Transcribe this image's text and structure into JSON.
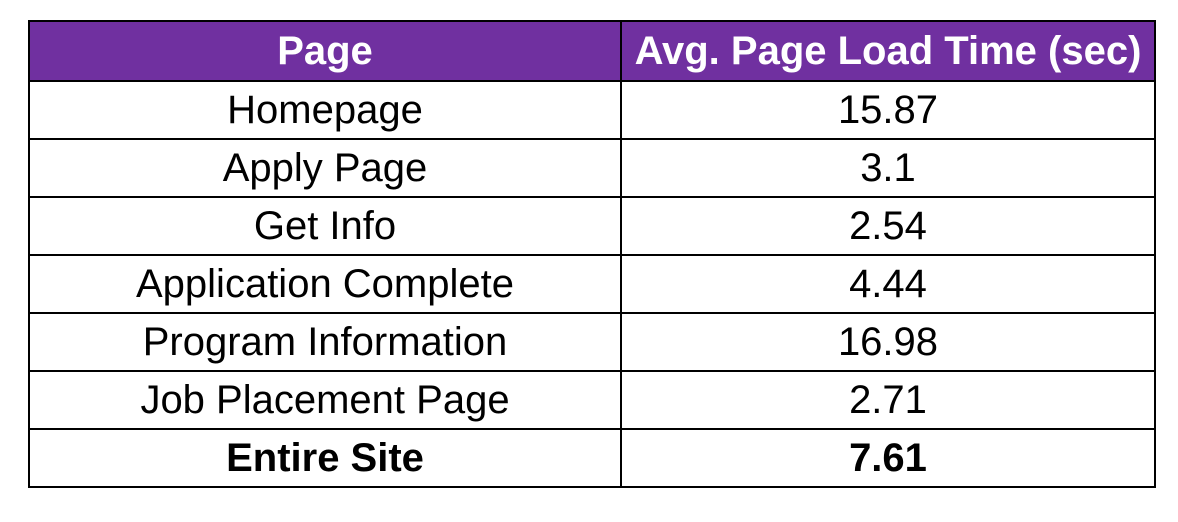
{
  "table": {
    "columns": [
      "Page",
      "Avg. Page Load Time (sec)"
    ],
    "rows": [
      {
        "page": "Homepage",
        "time": "15.87"
      },
      {
        "page": "Apply Page",
        "time": "3.1"
      },
      {
        "page": "Get Info",
        "time": "2.54"
      },
      {
        "page": "Application Complete",
        "time": "4.44"
      },
      {
        "page": "Program Information",
        "time": "16.98"
      },
      {
        "page": "Job Placement Page",
        "time": "2.71"
      }
    ],
    "total": {
      "page": "Entire Site",
      "time": "7.61"
    }
  },
  "colors": {
    "header_background": "#7030a0",
    "header_text": "#ffffff",
    "border": "#000000"
  }
}
